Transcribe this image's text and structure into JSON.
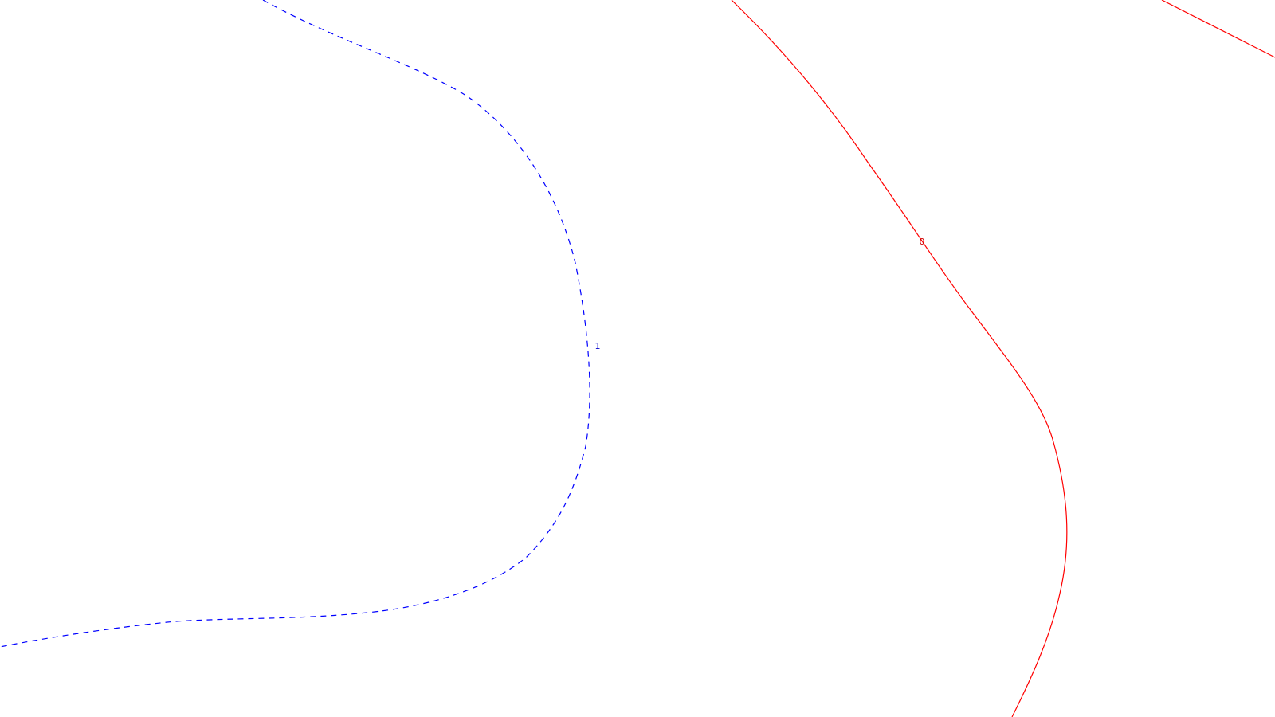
{
  "colors": {
    "background": "#ffffff",
    "contour_zero": "#ff0000",
    "contour_one": "#0000ff"
  },
  "contours": [
    {
      "level_label": "0",
      "style": "solid",
      "color": "#ff0000"
    },
    {
      "level_label": "1",
      "style": "dashed",
      "color": "#0000ff"
    }
  ]
}
